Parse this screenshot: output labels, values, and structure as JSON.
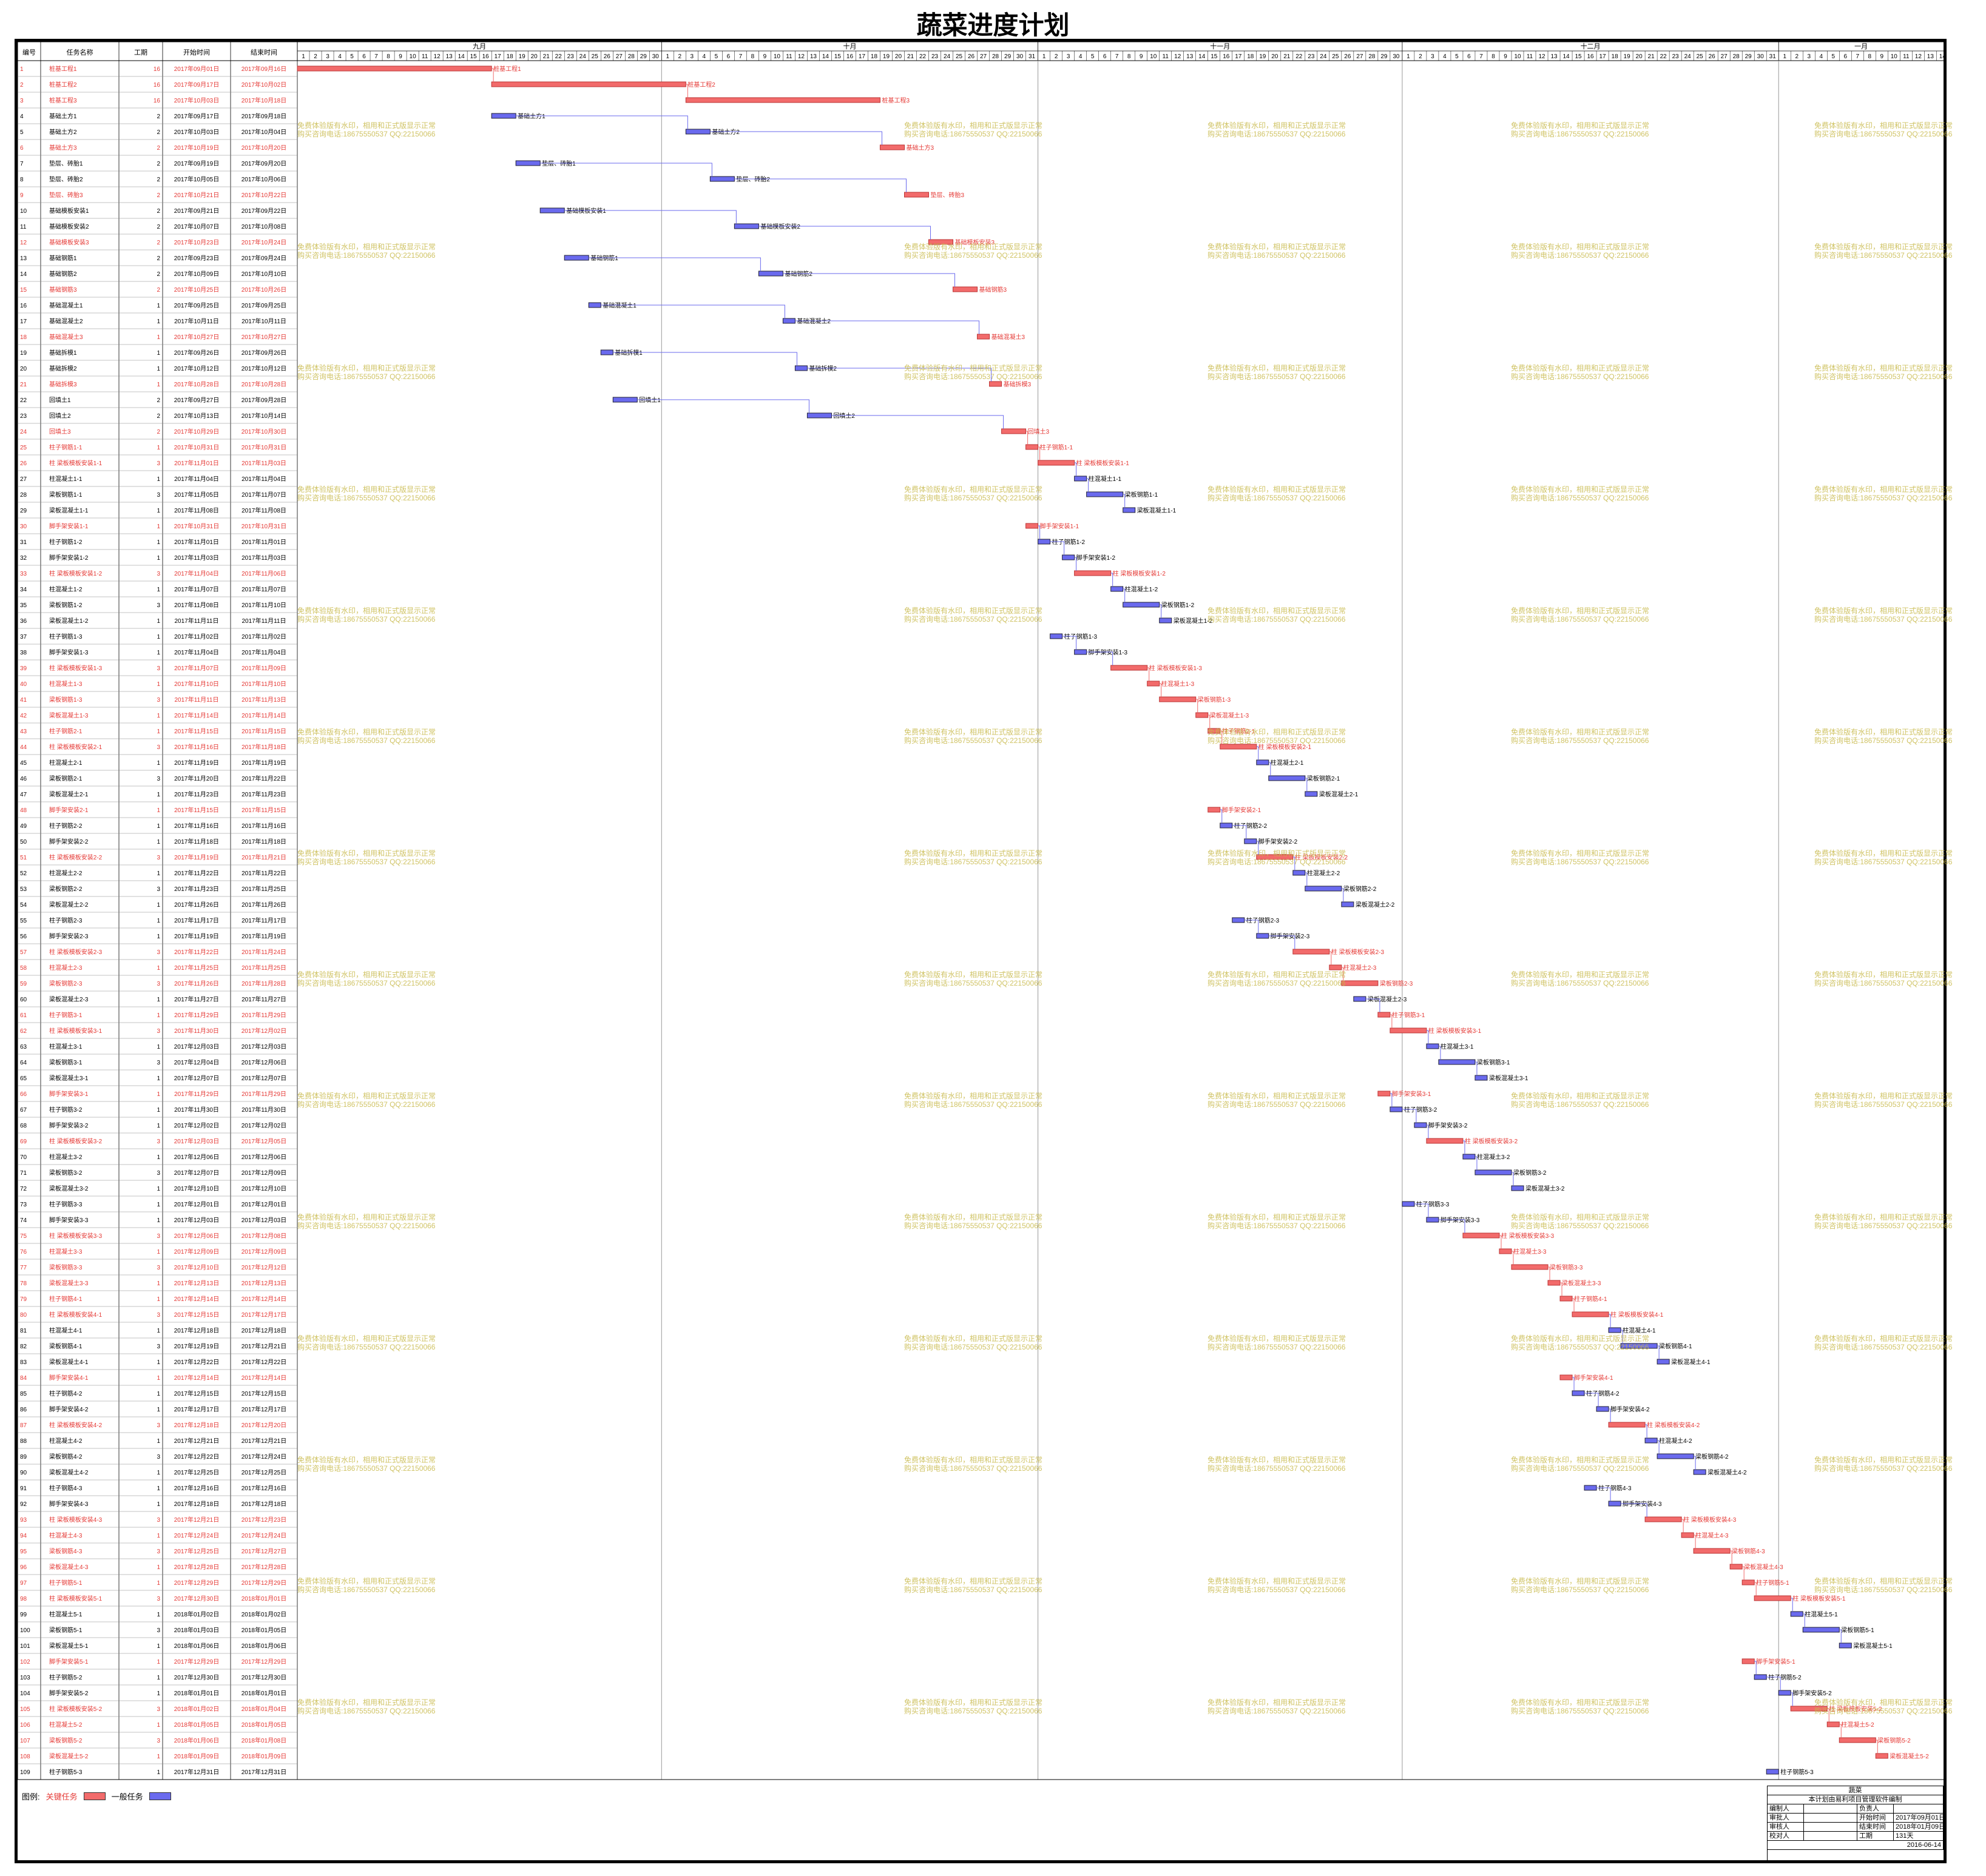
{
  "title": "蔬菜进度计划",
  "header": {
    "col_id": "编号",
    "col_name": "任务名称",
    "col_dur": "工期",
    "col_start": "开始时间",
    "col_end": "结束时间"
  },
  "months": [
    {
      "label": "九月",
      "days": 30
    },
    {
      "label": "十月",
      "days": 31
    },
    {
      "label": "十一月",
      "days": 30
    },
    {
      "label": "十二月",
      "days": 31
    },
    {
      "label": "一月",
      "days": 14
    }
  ],
  "watermark": {
    "line1": "免费体验版有水印，相用和正式版显示正常",
    "line2": "购买咨询电话:18675550537 QQ:22150066"
  },
  "legend": {
    "label": "图例:",
    "critical": "关键任务",
    "normal": "一般任务"
  },
  "colors": {
    "critical": "#f26b6b",
    "normal": "#6a6aee",
    "critical_text": "#e53935"
  },
  "title_block": {
    "company": "蔬菜",
    "note": "本计划由易利项目管理软件编制",
    "rows": [
      [
        "编制人",
        "",
        "负责人",
        ""
      ],
      [
        "审批人",
        "",
        "开始时间",
        "2017年09月01日"
      ],
      [
        "审核人",
        "",
        "结束时间",
        "2018年01月09日"
      ],
      [
        "校对人",
        "",
        "工期",
        "131天"
      ]
    ],
    "date": "2016-06-14"
  },
  "chart_data": {
    "type": "gantt",
    "start_date": "2017-09-01",
    "tasks": [
      {
        "id": 1,
        "name": "桩基工程1",
        "dur": 16,
        "start": "2017年09月01日",
        "end": "2017年09月16日",
        "crit": true
      },
      {
        "id": 2,
        "name": "桩基工程2",
        "dur": 16,
        "start": "2017年09月17日",
        "end": "2017年10月02日",
        "crit": true
      },
      {
        "id": 3,
        "name": "桩基工程3",
        "dur": 16,
        "start": "2017年10月03日",
        "end": "2017年10月18日",
        "crit": true
      },
      {
        "id": 4,
        "name": "基础土方1",
        "dur": 2,
        "start": "2017年09月17日",
        "end": "2017年09月18日",
        "crit": false
      },
      {
        "id": 5,
        "name": "基础土方2",
        "dur": 2,
        "start": "2017年10月03日",
        "end": "2017年10月04日",
        "crit": false
      },
      {
        "id": 6,
        "name": "基础土方3",
        "dur": 2,
        "start": "2017年10月19日",
        "end": "2017年10月20日",
        "crit": true
      },
      {
        "id": 7,
        "name": "垫层、砖胎1",
        "dur": 2,
        "start": "2017年09月19日",
        "end": "2017年09月20日",
        "crit": false
      },
      {
        "id": 8,
        "name": "垫层、砖胎2",
        "dur": 2,
        "start": "2017年10月05日",
        "end": "2017年10月06日",
        "crit": false
      },
      {
        "id": 9,
        "name": "垫层、砖胎3",
        "dur": 2,
        "start": "2017年10月21日",
        "end": "2017年10月22日",
        "crit": true
      },
      {
        "id": 10,
        "name": "基础模板安装1",
        "dur": 2,
        "start": "2017年09月21日",
        "end": "2017年09月22日",
        "crit": false
      },
      {
        "id": 11,
        "name": "基础模板安装2",
        "dur": 2,
        "start": "2017年10月07日",
        "end": "2017年10月08日",
        "crit": false
      },
      {
        "id": 12,
        "name": "基础模板安装3",
        "dur": 2,
        "start": "2017年10月23日",
        "end": "2017年10月24日",
        "crit": true
      },
      {
        "id": 13,
        "name": "基础钢筋1",
        "dur": 2,
        "start": "2017年09月23日",
        "end": "2017年09月24日",
        "crit": false
      },
      {
        "id": 14,
        "name": "基础钢筋2",
        "dur": 2,
        "start": "2017年10月09日",
        "end": "2017年10月10日",
        "crit": false
      },
      {
        "id": 15,
        "name": "基础钢筋3",
        "dur": 2,
        "start": "2017年10月25日",
        "end": "2017年10月26日",
        "crit": true
      },
      {
        "id": 16,
        "name": "基础混凝土1",
        "dur": 1,
        "start": "2017年09月25日",
        "end": "2017年09月25日",
        "crit": false
      },
      {
        "id": 17,
        "name": "基础混凝土2",
        "dur": 1,
        "start": "2017年10月11日",
        "end": "2017年10月11日",
        "crit": false
      },
      {
        "id": 18,
        "name": "基础混凝土3",
        "dur": 1,
        "start": "2017年10月27日",
        "end": "2017年10月27日",
        "crit": true
      },
      {
        "id": 19,
        "name": "基础拆模1",
        "dur": 1,
        "start": "2017年09月26日",
        "end": "2017年09月26日",
        "crit": false
      },
      {
        "id": 20,
        "name": "基础拆模2",
        "dur": 1,
        "start": "2017年10月12日",
        "end": "2017年10月12日",
        "crit": false
      },
      {
        "id": 21,
        "name": "基础拆模3",
        "dur": 1,
        "start": "2017年10月28日",
        "end": "2017年10月28日",
        "crit": true
      },
      {
        "id": 22,
        "name": "回填土1",
        "dur": 2,
        "start": "2017年09月27日",
        "end": "2017年09月28日",
        "crit": false
      },
      {
        "id": 23,
        "name": "回填土2",
        "dur": 2,
        "start": "2017年10月13日",
        "end": "2017年10月14日",
        "crit": false
      },
      {
        "id": 24,
        "name": "回填土3",
        "dur": 2,
        "start": "2017年10月29日",
        "end": "2017年10月30日",
        "crit": true
      },
      {
        "id": 25,
        "name": "柱子钢筋1-1",
        "dur": 1,
        "start": "2017年10月31日",
        "end": "2017年10月31日",
        "crit": true
      },
      {
        "id": 26,
        "name": "柱 梁板模板安装1-1",
        "dur": 3,
        "start": "2017年11月01日",
        "end": "2017年11月03日",
        "crit": true
      },
      {
        "id": 27,
        "name": "柱混凝土1-1",
        "dur": 1,
        "start": "2017年11月04日",
        "end": "2017年11月04日",
        "crit": false
      },
      {
        "id": 28,
        "name": "梁板钢筋1-1",
        "dur": 3,
        "start": "2017年11月05日",
        "end": "2017年11月07日",
        "crit": false
      },
      {
        "id": 29,
        "name": "梁板混凝土1-1",
        "dur": 1,
        "start": "2017年11月08日",
        "end": "2017年11月08日",
        "crit": false
      },
      {
        "id": 30,
        "name": "脚手架安装1-1",
        "dur": 1,
        "start": "2017年10月31日",
        "end": "2017年10月31日",
        "crit": true
      },
      {
        "id": 31,
        "name": "柱子钢筋1-2",
        "dur": 1,
        "start": "2017年11月01日",
        "end": "2017年11月01日",
        "crit": false
      },
      {
        "id": 32,
        "name": "脚手架安装1-2",
        "dur": 1,
        "start": "2017年11月03日",
        "end": "2017年11月03日",
        "crit": false
      },
      {
        "id": 33,
        "name": "柱 梁板模板安装1-2",
        "dur": 3,
        "start": "2017年11月04日",
        "end": "2017年11月06日",
        "crit": true
      },
      {
        "id": 34,
        "name": "柱混凝土1-2",
        "dur": 1,
        "start": "2017年11月07日",
        "end": "2017年11月07日",
        "crit": false
      },
      {
        "id": 35,
        "name": "梁板钢筋1-2",
        "dur": 3,
        "start": "2017年11月08日",
        "end": "2017年11月10日",
        "crit": false
      },
      {
        "id": 36,
        "name": "梁板混凝土1-2",
        "dur": 1,
        "start": "2017年11月11日",
        "end": "2017年11月11日",
        "crit": false
      },
      {
        "id": 37,
        "name": "柱子钢筋1-3",
        "dur": 1,
        "start": "2017年11月02日",
        "end": "2017年11月02日",
        "crit": false
      },
      {
        "id": 38,
        "name": "脚手架安装1-3",
        "dur": 1,
        "start": "2017年11月04日",
        "end": "2017年11月04日",
        "crit": false
      },
      {
        "id": 39,
        "name": "柱 梁板模板安装1-3",
        "dur": 3,
        "start": "2017年11月07日",
        "end": "2017年11月09日",
        "crit": true
      },
      {
        "id": 40,
        "name": "柱混凝土1-3",
        "dur": 1,
        "start": "2017年11月10日",
        "end": "2017年11月10日",
        "crit": true
      },
      {
        "id": 41,
        "name": "梁板钢筋1-3",
        "dur": 3,
        "start": "2017年11月11日",
        "end": "2017年11月13日",
        "crit": true
      },
      {
        "id": 42,
        "name": "梁板混凝土1-3",
        "dur": 1,
        "start": "2017年11月14日",
        "end": "2017年11月14日",
        "crit": true
      },
      {
        "id": 43,
        "name": "柱子钢筋2-1",
        "dur": 1,
        "start": "2017年11月15日",
        "end": "2017年11月15日",
        "crit": true
      },
      {
        "id": 44,
        "name": "柱 梁板模板安装2-1",
        "dur": 3,
        "start": "2017年11月16日",
        "end": "2017年11月18日",
        "crit": true
      },
      {
        "id": 45,
        "name": "柱混凝土2-1",
        "dur": 1,
        "start": "2017年11月19日",
        "end": "2017年11月19日",
        "crit": false
      },
      {
        "id": 46,
        "name": "梁板钢筋2-1",
        "dur": 3,
        "start": "2017年11月20日",
        "end": "2017年11月22日",
        "crit": false
      },
      {
        "id": 47,
        "name": "梁板混凝土2-1",
        "dur": 1,
        "start": "2017年11月23日",
        "end": "2017年11月23日",
        "crit": false
      },
      {
        "id": 48,
        "name": "脚手架安装2-1",
        "dur": 1,
        "start": "2017年11月15日",
        "end": "2017年11月15日",
        "crit": true
      },
      {
        "id": 49,
        "name": "柱子钢筋2-2",
        "dur": 1,
        "start": "2017年11月16日",
        "end": "2017年11月16日",
        "crit": false
      },
      {
        "id": 50,
        "name": "脚手架安装2-2",
        "dur": 1,
        "start": "2017年11月18日",
        "end": "2017年11月18日",
        "crit": false
      },
      {
        "id": 51,
        "name": "柱 梁板模板安装2-2",
        "dur": 3,
        "start": "2017年11月19日",
        "end": "2017年11月21日",
        "crit": true
      },
      {
        "id": 52,
        "name": "柱混凝土2-2",
        "dur": 1,
        "start": "2017年11月22日",
        "end": "2017年11月22日",
        "crit": false
      },
      {
        "id": 53,
        "name": "梁板钢筋2-2",
        "dur": 3,
        "start": "2017年11月23日",
        "end": "2017年11月25日",
        "crit": false
      },
      {
        "id": 54,
        "name": "梁板混凝土2-2",
        "dur": 1,
        "start": "2017年11月26日",
        "end": "2017年11月26日",
        "crit": false
      },
      {
        "id": 55,
        "name": "柱子钢筋2-3",
        "dur": 1,
        "start": "2017年11月17日",
        "end": "2017年11月17日",
        "crit": false
      },
      {
        "id": 56,
        "name": "脚手架安装2-3",
        "dur": 1,
        "start": "2017年11月19日",
        "end": "2017年11月19日",
        "crit": false
      },
      {
        "id": 57,
        "name": "柱 梁板模板安装2-3",
        "dur": 3,
        "start": "2017年11月22日",
        "end": "2017年11月24日",
        "crit": true
      },
      {
        "id": 58,
        "name": "柱混凝土2-3",
        "dur": 1,
        "start": "2017年11月25日",
        "end": "2017年11月25日",
        "crit": true
      },
      {
        "id": 59,
        "name": "梁板钢筋2-3",
        "dur": 3,
        "start": "2017年11月26日",
        "end": "2017年11月28日",
        "crit": true
      },
      {
        "id": 60,
        "name": "梁板混凝土2-3",
        "dur": 1,
        "start": "2017年11月27日",
        "end": "2017年11月27日",
        "crit": false
      },
      {
        "id": 61,
        "name": "柱子钢筋3-1",
        "dur": 1,
        "start": "2017年11月29日",
        "end": "2017年11月29日",
        "crit": true
      },
      {
        "id": 62,
        "name": "柱 梁板模板安装3-1",
        "dur": 3,
        "start": "2017年11月30日",
        "end": "2017年12月02日",
        "crit": true
      },
      {
        "id": 63,
        "name": "柱混凝土3-1",
        "dur": 1,
        "start": "2017年12月03日",
        "end": "2017年12月03日",
        "crit": false
      },
      {
        "id": 64,
        "name": "梁板钢筋3-1",
        "dur": 3,
        "start": "2017年12月04日",
        "end": "2017年12月06日",
        "crit": false
      },
      {
        "id": 65,
        "name": "梁板混凝土3-1",
        "dur": 1,
        "start": "2017年12月07日",
        "end": "2017年12月07日",
        "crit": false
      },
      {
        "id": 66,
        "name": "脚手架安装3-1",
        "dur": 1,
        "start": "2017年11月29日",
        "end": "2017年11月29日",
        "crit": true
      },
      {
        "id": 67,
        "name": "柱子钢筋3-2",
        "dur": 1,
        "start": "2017年11月30日",
        "end": "2017年11月30日",
        "crit": false
      },
      {
        "id": 68,
        "name": "脚手架安装3-2",
        "dur": 1,
        "start": "2017年12月02日",
        "end": "2017年12月02日",
        "crit": false
      },
      {
        "id": 69,
        "name": "柱 梁板模板安装3-2",
        "dur": 3,
        "start": "2017年12月03日",
        "end": "2017年12月05日",
        "crit": true
      },
      {
        "id": 70,
        "name": "柱混凝土3-2",
        "dur": 1,
        "start": "2017年12月06日",
        "end": "2017年12月06日",
        "crit": false
      },
      {
        "id": 71,
        "name": "梁板钢筋3-2",
        "dur": 3,
        "start": "2017年12月07日",
        "end": "2017年12月09日",
        "crit": false
      },
      {
        "id": 72,
        "name": "梁板混凝土3-2",
        "dur": 1,
        "start": "2017年12月10日",
        "end": "2017年12月10日",
        "crit": false
      },
      {
        "id": 73,
        "name": "柱子钢筋3-3",
        "dur": 1,
        "start": "2017年12月01日",
        "end": "2017年12月01日",
        "crit": false
      },
      {
        "id": 74,
        "name": "脚手架安装3-3",
        "dur": 1,
        "start": "2017年12月03日",
        "end": "2017年12月03日",
        "crit": false
      },
      {
        "id": 75,
        "name": "柱 梁板模板安装3-3",
        "dur": 3,
        "start": "2017年12月06日",
        "end": "2017年12月08日",
        "crit": true
      },
      {
        "id": 76,
        "name": "柱混凝土3-3",
        "dur": 1,
        "start": "2017年12月09日",
        "end": "2017年12月09日",
        "crit": true
      },
      {
        "id": 77,
        "name": "梁板钢筋3-3",
        "dur": 3,
        "start": "2017年12月10日",
        "end": "2017年12月12日",
        "crit": true
      },
      {
        "id": 78,
        "name": "梁板混凝土3-3",
        "dur": 1,
        "start": "2017年12月13日",
        "end": "2017年12月13日",
        "crit": true
      },
      {
        "id": 79,
        "name": "柱子钢筋4-1",
        "dur": 1,
        "start": "2017年12月14日",
        "end": "2017年12月14日",
        "crit": true
      },
      {
        "id": 80,
        "name": "柱 梁板模板安装4-1",
        "dur": 3,
        "start": "2017年12月15日",
        "end": "2017年12月17日",
        "crit": true
      },
      {
        "id": 81,
        "name": "柱混凝土4-1",
        "dur": 1,
        "start": "2017年12月18日",
        "end": "2017年12月18日",
        "crit": false
      },
      {
        "id": 82,
        "name": "梁板钢筋4-1",
        "dur": 3,
        "start": "2017年12月19日",
        "end": "2017年12月21日",
        "crit": false
      },
      {
        "id": 83,
        "name": "梁板混凝土4-1",
        "dur": 1,
        "start": "2017年12月22日",
        "end": "2017年12月22日",
        "crit": false
      },
      {
        "id": 84,
        "name": "脚手架安装4-1",
        "dur": 1,
        "start": "2017年12月14日",
        "end": "2017年12月14日",
        "crit": true
      },
      {
        "id": 85,
        "name": "柱子钢筋4-2",
        "dur": 1,
        "start": "2017年12月15日",
        "end": "2017年12月15日",
        "crit": false
      },
      {
        "id": 86,
        "name": "脚手架安装4-2",
        "dur": 1,
        "start": "2017年12月17日",
        "end": "2017年12月17日",
        "crit": false
      },
      {
        "id": 87,
        "name": "柱 梁板模板安装4-2",
        "dur": 3,
        "start": "2017年12月18日",
        "end": "2017年12月20日",
        "crit": true
      },
      {
        "id": 88,
        "name": "柱混凝土4-2",
        "dur": 1,
        "start": "2017年12月21日",
        "end": "2017年12月21日",
        "crit": false
      },
      {
        "id": 89,
        "name": "梁板钢筋4-2",
        "dur": 3,
        "start": "2017年12月22日",
        "end": "2017年12月24日",
        "crit": false
      },
      {
        "id": 90,
        "name": "梁板混凝土4-2",
        "dur": 1,
        "start": "2017年12月25日",
        "end": "2017年12月25日",
        "crit": false
      },
      {
        "id": 91,
        "name": "柱子钢筋4-3",
        "dur": 1,
        "start": "2017年12月16日",
        "end": "2017年12月16日",
        "crit": false
      },
      {
        "id": 92,
        "name": "脚手架安装4-3",
        "dur": 1,
        "start": "2017年12月18日",
        "end": "2017年12月18日",
        "crit": false
      },
      {
        "id": 93,
        "name": "柱 梁板模板安装4-3",
        "dur": 3,
        "start": "2017年12月21日",
        "end": "2017年12月23日",
        "crit": true
      },
      {
        "id": 94,
        "name": "柱混凝土4-3",
        "dur": 1,
        "start": "2017年12月24日",
        "end": "2017年12月24日",
        "crit": true
      },
      {
        "id": 95,
        "name": "梁板钢筋4-3",
        "dur": 3,
        "start": "2017年12月25日",
        "end": "2017年12月27日",
        "crit": true
      },
      {
        "id": 96,
        "name": "梁板混凝土4-3",
        "dur": 1,
        "start": "2017年12月28日",
        "end": "2017年12月28日",
        "crit": true
      },
      {
        "id": 97,
        "name": "柱子钢筋5-1",
        "dur": 1,
        "start": "2017年12月29日",
        "end": "2017年12月29日",
        "crit": true
      },
      {
        "id": 98,
        "name": "柱 梁板模板安装5-1",
        "dur": 3,
        "start": "2017年12月30日",
        "end": "2018年01月01日",
        "crit": true
      },
      {
        "id": 99,
        "name": "柱混凝土5-1",
        "dur": 1,
        "start": "2018年01月02日",
        "end": "2018年01月02日",
        "crit": false
      },
      {
        "id": 100,
        "name": "梁板钢筋5-1",
        "dur": 3,
        "start": "2018年01月03日",
        "end": "2018年01月05日",
        "crit": false
      },
      {
        "id": 101,
        "name": "梁板混凝土5-1",
        "dur": 1,
        "start": "2018年01月06日",
        "end": "2018年01月06日",
        "crit": false
      },
      {
        "id": 102,
        "name": "脚手架安装5-1",
        "dur": 1,
        "start": "2017年12月29日",
        "end": "2017年12月29日",
        "crit": true
      },
      {
        "id": 103,
        "name": "柱子钢筋5-2",
        "dur": 1,
        "start": "2017年12月30日",
        "end": "2017年12月30日",
        "crit": false
      },
      {
        "id": 104,
        "name": "脚手架安装5-2",
        "dur": 1,
        "start": "2018年01月01日",
        "end": "2018年01月01日",
        "crit": false
      },
      {
        "id": 105,
        "name": "柱 梁板模板安装5-2",
        "dur": 3,
        "start": "2018年01月02日",
        "end": "2018年01月04日",
        "crit": true
      },
      {
        "id": 106,
        "name": "柱混凝土5-2",
        "dur": 1,
        "start": "2018年01月05日",
        "end": "2018年01月05日",
        "crit": true
      },
      {
        "id": 107,
        "name": "梁板钢筋5-2",
        "dur": 3,
        "start": "2018年01月06日",
        "end": "2018年01月08日",
        "crit": true
      },
      {
        "id": 108,
        "name": "梁板混凝土5-2",
        "dur": 1,
        "start": "2018年01月09日",
        "end": "2018年01月09日",
        "crit": true
      },
      {
        "id": 109,
        "name": "柱子钢筋5-3",
        "dur": 1,
        "start": "2017年12月31日",
        "end": "2017年12月31日",
        "crit": false
      }
    ]
  }
}
